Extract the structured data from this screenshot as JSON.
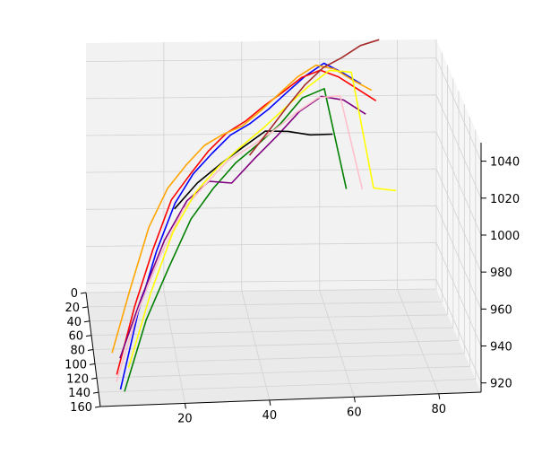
{
  "chart_data": {
    "type": "line",
    "projection": "3d",
    "title": "",
    "xlabel": "",
    "ylabel": "",
    "zlabel": "",
    "grid": true,
    "legend": "none",
    "axes": {
      "x": {
        "ticks": [
          20,
          40,
          60,
          80
        ],
        "range": [
          0,
          90
        ]
      },
      "y": {
        "ticks": [
          0,
          20,
          40,
          60,
          80,
          100,
          120,
          140,
          160
        ],
        "range": [
          0,
          160
        ]
      },
      "z": {
        "ticks": [
          920,
          940,
          960,
          980,
          1000,
          1020,
          1040
        ],
        "range": [
          915,
          1050
        ]
      }
    },
    "series": [
      {
        "color": "#0000ff",
        "x": [
          5,
          10,
          15,
          20,
          25,
          30,
          35,
          40,
          45,
          50,
          55,
          60,
          65,
          70
        ],
        "y": [
          150,
          120,
          100,
          85,
          70,
          60,
          50,
          45,
          40,
          30,
          25,
          20,
          15,
          10
        ],
        "z": [
          920,
          950,
          975,
          995,
          1005,
          1012,
          1018,
          1022,
          1028,
          1033,
          1040,
          1045,
          1038,
          1030
        ]
      },
      {
        "color": "#ff0000",
        "x": [
          4,
          9,
          14,
          19,
          24,
          29,
          34,
          39,
          44,
          49,
          54,
          59,
          64,
          69,
          74
        ],
        "y": [
          155,
          125,
          105,
          88,
          74,
          62,
          52,
          46,
          40,
          34,
          27,
          22,
          16,
          12,
          8
        ],
        "z": [
          930,
          955,
          978,
          998,
          1006,
          1014,
          1020,
          1024,
          1030,
          1035,
          1040,
          1042,
          1036,
          1028,
          1020
        ]
      },
      {
        "color": "#008000",
        "x": [
          6,
          12,
          18,
          24,
          30,
          36,
          42,
          48,
          54,
          60,
          66
        ],
        "y": [
          148,
          118,
          98,
          82,
          68,
          56,
          48,
          40,
          30,
          22,
          15
        ],
        "z": [
          918,
          945,
          965,
          985,
          996,
          1005,
          1012,
          1020,
          1030,
          1032,
          975
        ]
      },
      {
        "color": "#800080",
        "x": [
          5,
          11,
          17,
          23,
          29,
          35,
          41,
          47,
          53,
          59,
          65,
          71
        ],
        "y": [
          145,
          118,
          98,
          82,
          68,
          58,
          50,
          44,
          36,
          28,
          20,
          14
        ],
        "z": [
          935,
          958,
          980,
          995,
          1000,
          995,
          1005,
          1015,
          1025,
          1030,
          1025,
          1015
        ]
      },
      {
        "color": "#ffa500",
        "x": [
          3,
          8,
          13,
          18,
          23,
          28,
          33,
          38,
          43,
          48,
          53,
          58,
          63,
          68,
          73
        ],
        "y": [
          150,
          125,
          105,
          90,
          76,
          64,
          54,
          48,
          42,
          34,
          26,
          20,
          15,
          10,
          6
        ],
        "z": [
          940,
          965,
          990,
          1005,
          1012,
          1018,
          1020,
          1022,
          1028,
          1034,
          1040,
          1044,
          1040,
          1032,
          1025
        ]
      },
      {
        "color": "#000000",
        "x": [
          20,
          26,
          32,
          38,
          44,
          50,
          56,
          62
        ],
        "y": [
          80,
          70,
          60,
          52,
          45,
          38,
          30,
          24
        ],
        "z": [
          990,
          1000,
          1006,
          1012,
          1018,
          1015,
          1010,
          1008
        ]
      },
      {
        "color": "#ffc0cb",
        "x": [
          4,
          10,
          16,
          22,
          28,
          34,
          40,
          46,
          52,
          58,
          64,
          70
        ],
        "y": [
          152,
          122,
          102,
          86,
          72,
          60,
          51,
          45,
          38,
          30,
          22,
          16
        ],
        "z": [
          925,
          952,
          974,
          992,
          1000,
          1008,
          1012,
          1018,
          1025,
          1030,
          1028,
          975
        ]
      },
      {
        "color": "#ffff00",
        "x": [
          7,
          13,
          19,
          25,
          31,
          37,
          43,
          49,
          55,
          61,
          67,
          73,
          79
        ],
        "y": [
          146,
          120,
          100,
          84,
          70,
          60,
          52,
          44,
          36,
          28,
          20,
          14,
          10
        ],
        "z": [
          930,
          960,
          985,
          1000,
          1008,
          1015,
          1022,
          1030,
          1038,
          1044,
          1040,
          975,
          972
        ]
      },
      {
        "color": "#a52a2a",
        "x": [
          40,
          45,
          50,
          55,
          60,
          65,
          70,
          75
        ],
        "y": [
          45,
          38,
          30,
          24,
          18,
          12,
          8,
          5
        ],
        "z": [
          1005,
          1015,
          1025,
          1035,
          1042,
          1045,
          1050,
          1052
        ]
      }
    ]
  }
}
